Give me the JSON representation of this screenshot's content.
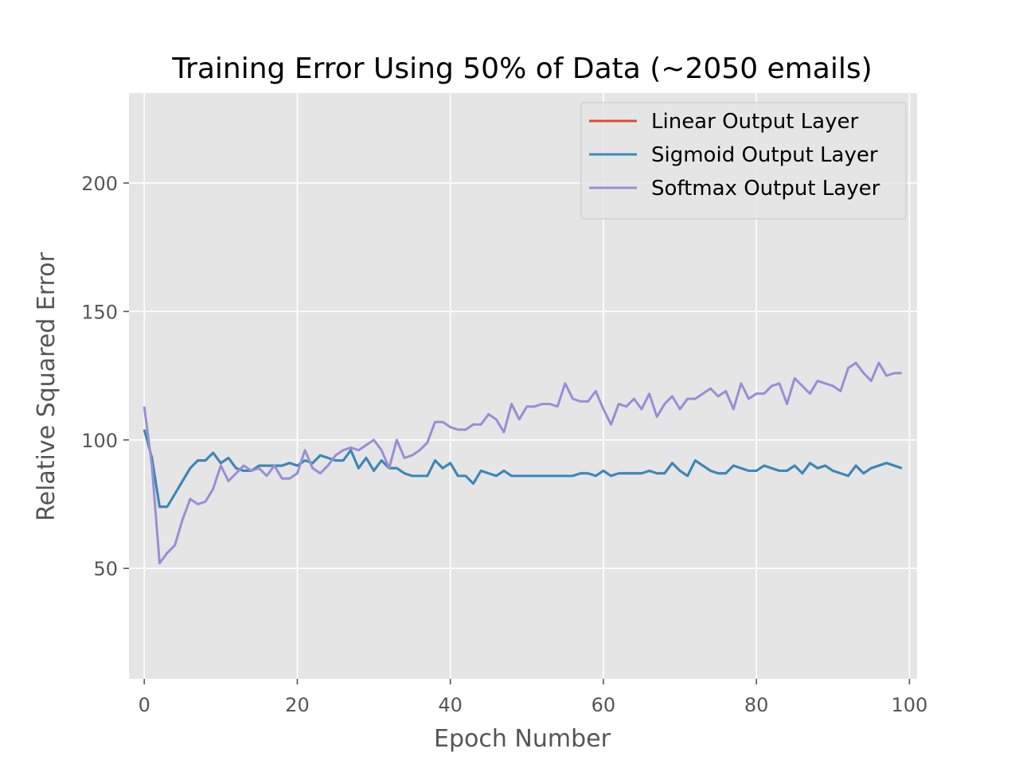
{
  "chart_data": {
    "type": "line",
    "title": "Training Error Using 50% of Data (~2050 emails)",
    "xlabel": "Epoch Number",
    "ylabel": "Relative Squared Error",
    "xlim": [
      -2,
      101
    ],
    "ylim": [
      7,
      235
    ],
    "xticks": [
      0,
      20,
      40,
      60,
      80,
      100
    ],
    "yticks": [
      50,
      100,
      150,
      200
    ],
    "grid": true,
    "legend_position": "top-right",
    "colors": {
      "background": "#E5E5E5",
      "grid": "#FFFFFF",
      "linear": "#E24A33",
      "sigmoid": "#348ABD",
      "softmax": "#988ED5"
    },
    "series": [
      {
        "name": "Linear Output Layer",
        "color": "#E24A33",
        "values": [
          104,
          93,
          74,
          74,
          79,
          84,
          89,
          92,
          92,
          95,
          91,
          93,
          89,
          88,
          88,
          90,
          90,
          90,
          90,
          91,
          90,
          92,
          91,
          94,
          93,
          92,
          92,
          96,
          89,
          93,
          88,
          92,
          89,
          89,
          87,
          86,
          86,
          86,
          92,
          89,
          91,
          86,
          86,
          83,
          88,
          87,
          86,
          88,
          86,
          86,
          86,
          86,
          86,
          86,
          86,
          86,
          86,
          87,
          87,
          86,
          88,
          86,
          87,
          87,
          87,
          87,
          88,
          87,
          87,
          91,
          88,
          86,
          92,
          90,
          88,
          87,
          87,
          90,
          89,
          88,
          88,
          90,
          89,
          88,
          88,
          90,
          87,
          91,
          89,
          90,
          88,
          87,
          86,
          90,
          87,
          89,
          90,
          91,
          90,
          89
        ]
      },
      {
        "name": "Sigmoid Output Layer",
        "color": "#348ABD",
        "values": [
          104,
          93,
          74,
          74,
          79,
          84,
          89,
          92,
          92,
          95,
          91,
          93,
          89,
          88,
          88,
          90,
          90,
          90,
          90,
          91,
          90,
          92,
          91,
          94,
          93,
          92,
          92,
          96,
          89,
          93,
          88,
          92,
          89,
          89,
          87,
          86,
          86,
          86,
          92,
          89,
          91,
          86,
          86,
          83,
          88,
          87,
          86,
          88,
          86,
          86,
          86,
          86,
          86,
          86,
          86,
          86,
          86,
          87,
          87,
          86,
          88,
          86,
          87,
          87,
          87,
          87,
          88,
          87,
          87,
          91,
          88,
          86,
          92,
          90,
          88,
          87,
          87,
          90,
          89,
          88,
          88,
          90,
          89,
          88,
          88,
          90,
          87,
          91,
          89,
          90,
          88,
          87,
          86,
          90,
          87,
          89,
          90,
          91,
          90,
          89
        ]
      },
      {
        "name": "Softmax Output Layer",
        "color": "#988ED5",
        "values": [
          113,
          90,
          52,
          56,
          59,
          69,
          77,
          75,
          76,
          81,
          90,
          84,
          87,
          90,
          88,
          89,
          86,
          90,
          85,
          85,
          87,
          96,
          89,
          87,
          90,
          94,
          96,
          97,
          96,
          98,
          100,
          96,
          89,
          100,
          93,
          94,
          96,
          99,
          107,
          107,
          105,
          104,
          104,
          106,
          106,
          110,
          108,
          103,
          114,
          108,
          113,
          113,
          114,
          114,
          113,
          122,
          116,
          115,
          115,
          119,
          112,
          106,
          114,
          113,
          116,
          112,
          118,
          109,
          114,
          117,
          112,
          116,
          116,
          118,
          120,
          117,
          119,
          112,
          122,
          116,
          118,
          118,
          121,
          122,
          114,
          124,
          121,
          118,
          123,
          122,
          121,
          119,
          128,
          130,
          126,
          123,
          130,
          125,
          126,
          126
        ]
      }
    ]
  }
}
